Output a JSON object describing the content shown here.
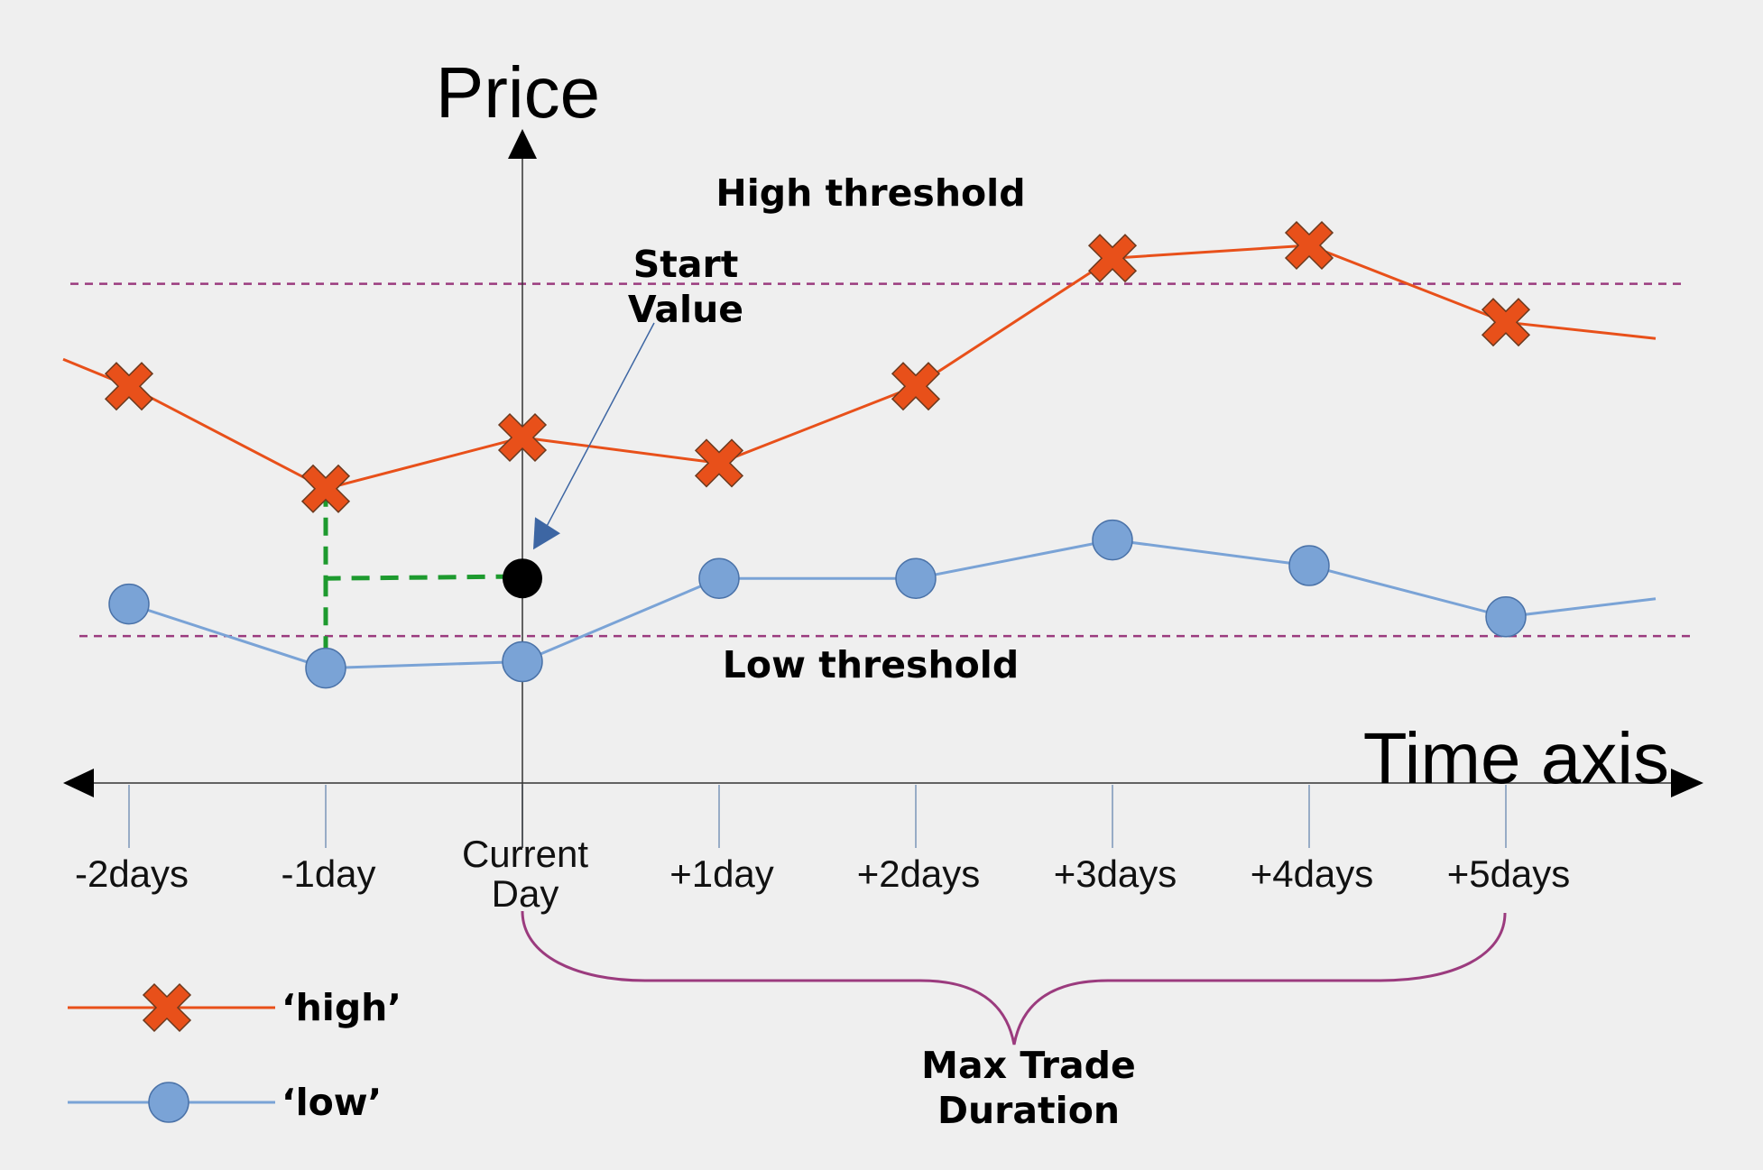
{
  "axes": {
    "y_title": "Price",
    "x_title": "Time axis"
  },
  "colors": {
    "high": "#e8501a",
    "low": "#7aa3d6",
    "threshold": "#9b3b7e",
    "guide": "#1d9a2e",
    "brace": "#9b3b7e",
    "pointer": "#3d66a3"
  },
  "thresholds": {
    "high_label": "High threshold",
    "low_label": "Low threshold"
  },
  "annotations": {
    "start_value_line1": "Start",
    "start_value_line2": "Value",
    "max_trade_line1": "Max Trade",
    "max_trade_line2": "Duration"
  },
  "legend": {
    "high": "‘high’",
    "low": "‘low’"
  },
  "chart_data": {
    "type": "line",
    "categories": [
      "-2days",
      "-1day",
      "Current Day",
      "+1day",
      "+2days",
      "+3days",
      "+4days",
      "+5days"
    ],
    "tick_labels": [
      [
        "-2days"
      ],
      [
        "-1day"
      ],
      [
        "Current",
        "Day"
      ],
      [
        "+1day"
      ],
      [
        "+2days"
      ],
      [
        "+3days"
      ],
      [
        "+4days"
      ],
      [
        "+5days"
      ]
    ],
    "series": [
      {
        "name": "‘high’",
        "marker": "x-cross",
        "values": [
          5.8,
          4.2,
          5.0,
          4.6,
          5.8,
          7.8,
          8.0,
          6.8
        ]
      },
      {
        "name": "‘low’",
        "marker": "circle",
        "values": [
          2.4,
          1.4,
          1.5,
          2.8,
          2.8,
          3.4,
          3.0,
          2.2
        ]
      }
    ],
    "high_threshold": 7.4,
    "low_threshold": 1.9,
    "start_value": {
      "category": "Current Day",
      "value": 2.8
    },
    "ylim": [
      0,
      10
    ]
  }
}
